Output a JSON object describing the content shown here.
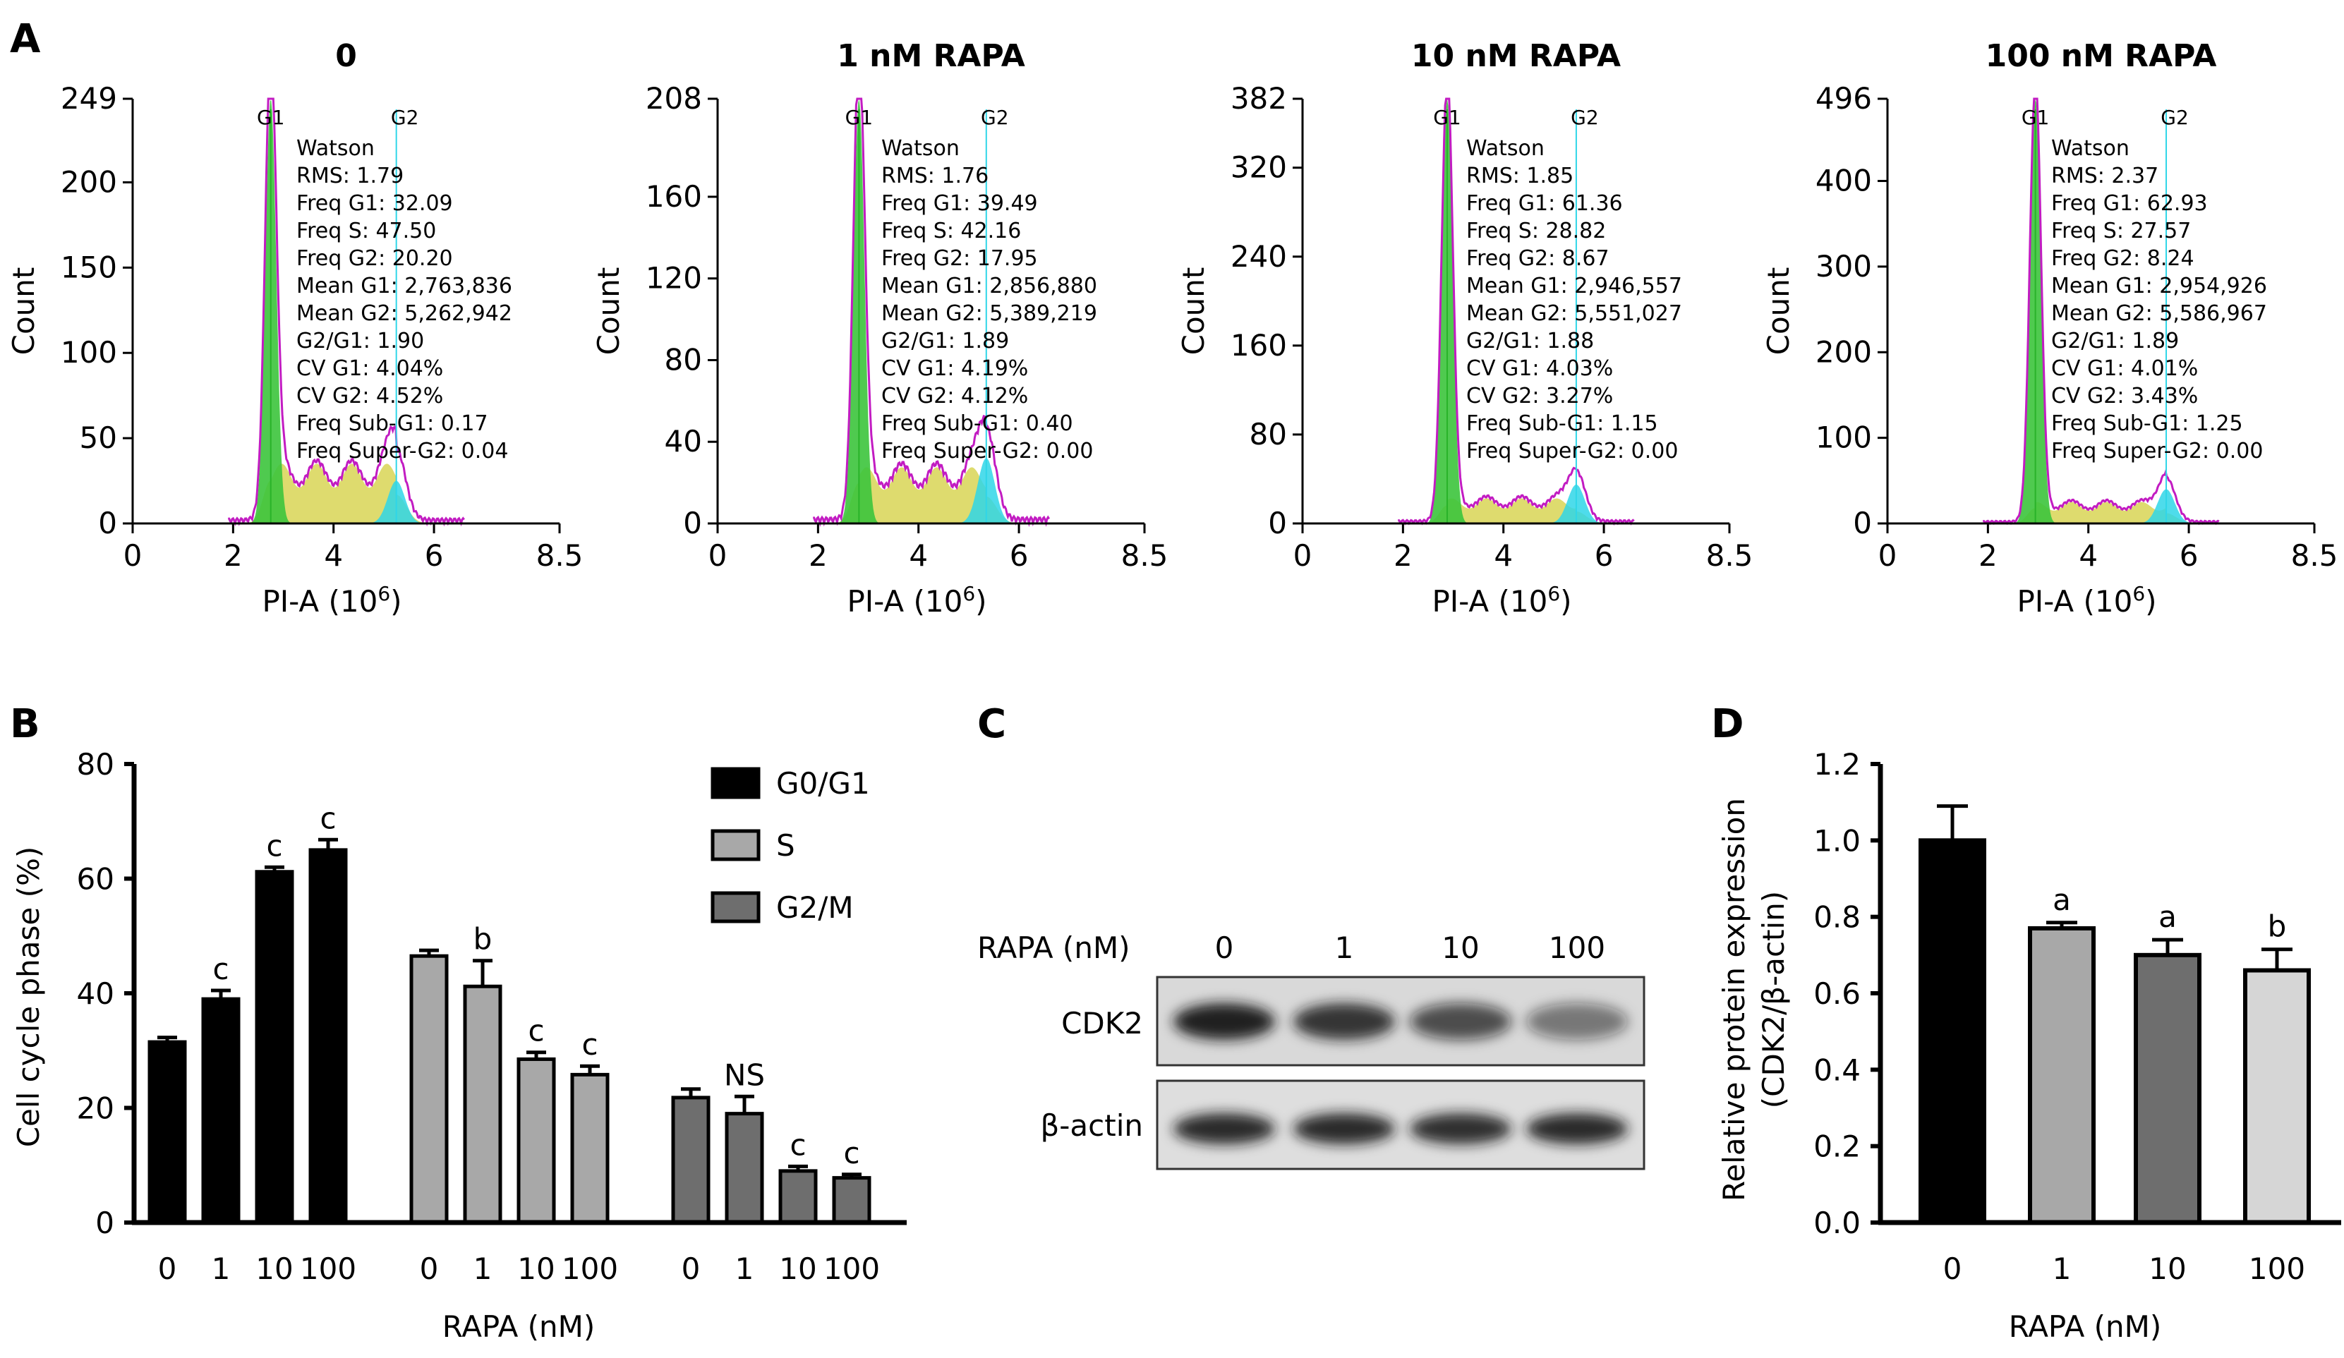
{
  "panels": {
    "A": "A",
    "B": "B",
    "C": "C",
    "D": "D"
  },
  "histograms": [
    {
      "title": "0",
      "ymax": 249,
      "yticks": [
        0,
        50,
        100,
        150,
        200,
        249
      ],
      "peak_g1": 249,
      "g2_height": 25,
      "s_level": 28,
      "stats": [
        "Watson",
        "RMS: 1.79",
        "Freq G1: 32.09",
        "Freq S: 47.50",
        "Freq G2: 20.20",
        "Mean G1: 2,763,836",
        "Mean G2: 5,262,942",
        "G2/G1: 1.90",
        "CV G1: 4.04%",
        "CV G2: 4.52%",
        "Freq Sub-G1: 0.17",
        "Freq Super-G2: 0.04"
      ]
    },
    {
      "title": "1 nM RAPA",
      "ymax": 208,
      "yticks": [
        0,
        40,
        80,
        120,
        160,
        208
      ],
      "peak_g1": 208,
      "g2_height": 32,
      "s_level": 22,
      "stats": [
        "Watson",
        "RMS: 1.76",
        "Freq G1: 39.49",
        "Freq S: 42.16",
        "Freq G2: 17.95",
        "Mean G1: 2,856,880",
        "Mean G2: 5,389,219",
        "G2/G1: 1.89",
        "CV G1: 4.19%",
        "CV G2: 4.12%",
        "Freq Sub-G1: 0.40",
        "Freq Super-G2: 0.00"
      ]
    },
    {
      "title": "10 nM RAPA",
      "ymax": 382,
      "yticks": [
        0,
        80,
        160,
        240,
        320,
        382
      ],
      "peak_g1": 382,
      "g2_height": 35,
      "s_level": 18,
      "stats": [
        "Watson",
        "RMS: 1.85",
        "Freq G1: 61.36",
        "Freq S: 28.82",
        "Freq G2: 8.67",
        "Mean G1: 2,946,557",
        "Mean G2: 5,551,027",
        "G2/G1: 1.88",
        "CV G1: 4.03%",
        "CV G2: 3.27%",
        "Freq Sub-G1: 1.15",
        "Freq Super-G2: 0.00"
      ]
    },
    {
      "title": "100 nM RAPA",
      "ymax": 496,
      "yticks": [
        0,
        100,
        200,
        300,
        400,
        496
      ],
      "peak_g1": 496,
      "g2_height": 40,
      "s_level": 20,
      "stats": [
        "Watson",
        "RMS: 2.37",
        "Freq G1: 62.93",
        "Freq S: 27.57",
        "Freq G2: 8.24",
        "Mean G1: 2,954,926",
        "Mean G2: 5,586,967",
        "G2/G1: 1.89",
        "CV G1: 4.01%",
        "CV G2: 3.43%",
        "Freq Sub-G1: 1.25",
        "Freq Super-G2: 0.00"
      ]
    }
  ],
  "hist_common": {
    "xticks": [
      "0",
      "2",
      "4",
      "6",
      "8.5"
    ],
    "xtick_values": [
      0,
      2,
      4,
      6,
      8.5
    ],
    "xmax": 8.5,
    "ylabel": "Count",
    "xlabel_main": "PI-A (10",
    "xlabel_sup": "6",
    "xlabel_end": ")",
    "gate_g1": "G1",
    "gate_g2": "G2"
  },
  "chart_data": [
    {
      "type": "bar",
      "panel": "B",
      "ylabel": "Cell cycle phase (%)",
      "xlabel": "RAPA (nM)",
      "ylim": [
        0,
        80
      ],
      "yticks": [
        0,
        20,
        40,
        60,
        80
      ],
      "categories": [
        "0",
        "1",
        "10",
        "100"
      ],
      "series": [
        {
          "name": "G0/G1",
          "color": "#000000",
          "values": [
            31.5,
            39.0,
            61.2,
            65.0
          ],
          "errors": [
            0.8,
            1.5,
            0.8,
            1.8
          ],
          "labels": [
            "",
            "c",
            "c",
            "c"
          ]
        },
        {
          "name": "S",
          "color": "#a8a8a8",
          "values": [
            46.5,
            41.2,
            28.5,
            25.8
          ],
          "errors": [
            1.0,
            4.5,
            1.2,
            1.5
          ],
          "labels": [
            "",
            "b",
            "c",
            "c"
          ]
        },
        {
          "name": "G2/M",
          "color": "#6e6e6e",
          "values": [
            21.8,
            19.0,
            9.0,
            7.8
          ],
          "errors": [
            1.5,
            3.0,
            0.8,
            0.6
          ],
          "labels": [
            "",
            "NS",
            "c",
            "c"
          ]
        }
      ]
    },
    {
      "type": "bar",
      "panel": "D",
      "ylabel_line1": "Relative protein expression",
      "ylabel_line2": "(CDK2/β-actin)",
      "xlabel": "RAPA (nM)",
      "ylim": [
        0,
        1.2
      ],
      "yticks": [
        "0.0",
        "0.2",
        "0.4",
        "0.6",
        "0.8",
        "1.0",
        "1.2"
      ],
      "categories": [
        "0",
        "1",
        "10",
        "100"
      ],
      "values": [
        1.0,
        0.77,
        0.7,
        0.66
      ],
      "errors": [
        0.09,
        0.015,
        0.04,
        0.055
      ],
      "colors": [
        "#000000",
        "#a8a8a8",
        "#6e6e6e",
        "#d6d6d6"
      ],
      "labels": [
        "",
        "a",
        "a",
        "b"
      ]
    }
  ],
  "blot": {
    "treatment_label": "RAPA (nM)",
    "lanes": [
      "0",
      "1",
      "10",
      "100"
    ],
    "rows": [
      {
        "name": "CDK2",
        "intensity": [
          0.95,
          0.85,
          0.7,
          0.5
        ]
      },
      {
        "name": "β-actin",
        "intensity": [
          0.9,
          0.9,
          0.88,
          0.9
        ]
      }
    ]
  }
}
